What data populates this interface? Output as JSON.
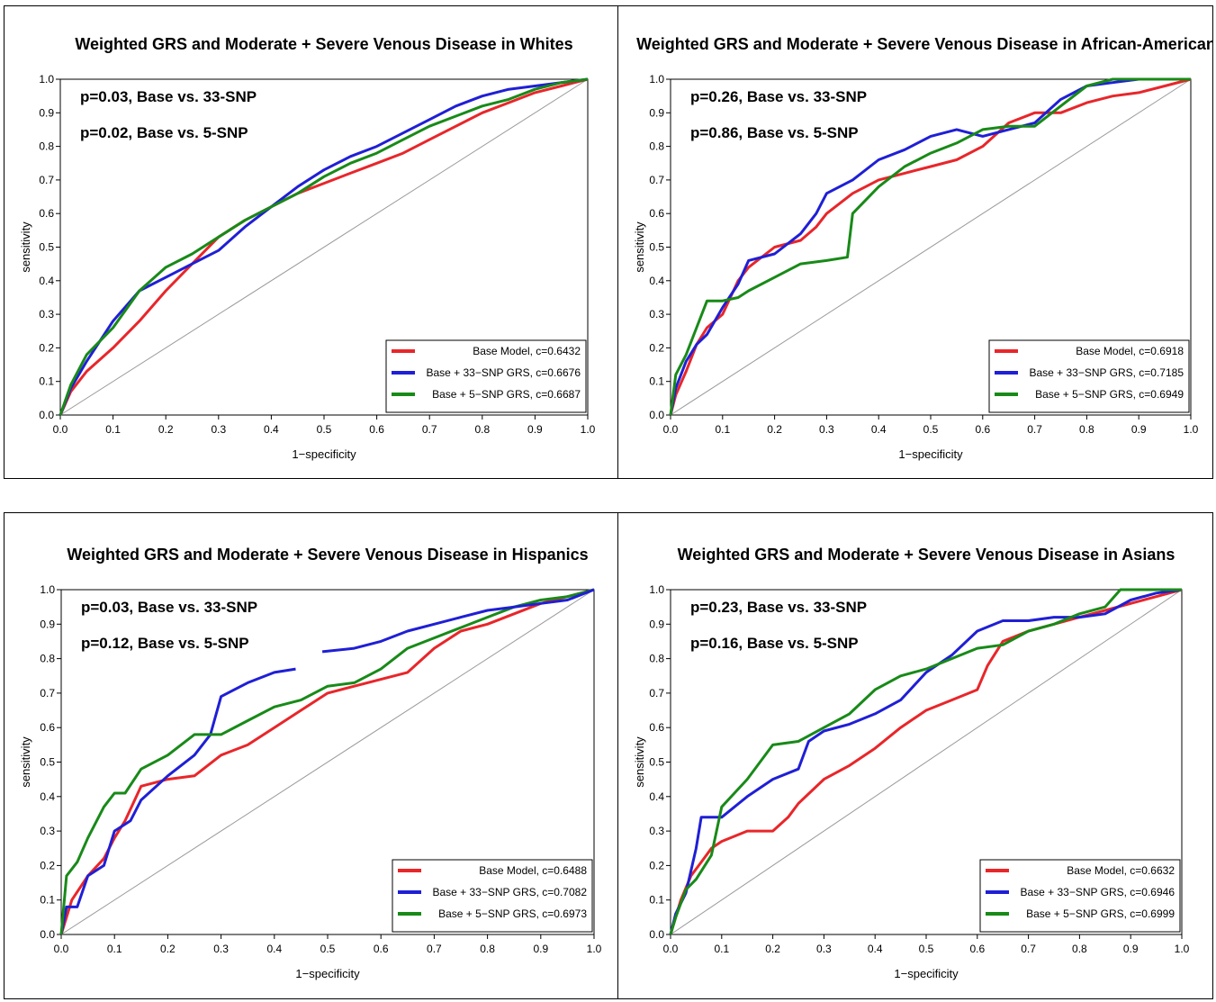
{
  "colors": {
    "base": "#e8262a",
    "snp33": "#1f1fd6",
    "snp5": "#188a18"
  },
  "chart_data": [
    {
      "type": "line",
      "title": "Weighted GRS and Moderate + Severe Venous Disease in Whites",
      "xlabel": "1−specificity",
      "ylabel": "sensitivity",
      "xlim": [
        0,
        1
      ],
      "ylim": [
        0,
        1
      ],
      "ticks": [
        "0.0",
        "0.1",
        "0.2",
        "0.3",
        "0.4",
        "0.5",
        "0.6",
        "0.7",
        "0.8",
        "0.9",
        "1.0"
      ],
      "annotations": [
        "p=0.03, Base vs. 33-SNP",
        "p=0.02, Base vs. 5-SNP"
      ],
      "legend_position": "bottom-right",
      "series": [
        {
          "name": "Base Model, c=0.6432",
          "color_key": "base",
          "x": [
            0,
            0.02,
            0.05,
            0.1,
            0.15,
            0.2,
            0.25,
            0.3,
            0.35,
            0.4,
            0.45,
            0.5,
            0.55,
            0.6,
            0.65,
            0.7,
            0.75,
            0.8,
            0.85,
            0.9,
            0.95,
            1.0
          ],
          "y": [
            0,
            0.07,
            0.13,
            0.2,
            0.28,
            0.37,
            0.45,
            0.53,
            0.58,
            0.62,
            0.66,
            0.69,
            0.72,
            0.75,
            0.78,
            0.82,
            0.86,
            0.9,
            0.93,
            0.96,
            0.98,
            1.0
          ]
        },
        {
          "name": "Base + 33−SNP GRS, c=0.6676",
          "color_key": "snp33",
          "x": [
            0,
            0.02,
            0.05,
            0.1,
            0.15,
            0.2,
            0.25,
            0.3,
            0.35,
            0.4,
            0.45,
            0.5,
            0.55,
            0.6,
            0.65,
            0.7,
            0.75,
            0.8,
            0.85,
            0.9,
            0.95,
            1.0
          ],
          "y": [
            0,
            0.08,
            0.16,
            0.28,
            0.37,
            0.41,
            0.45,
            0.49,
            0.56,
            0.62,
            0.68,
            0.73,
            0.77,
            0.8,
            0.84,
            0.88,
            0.92,
            0.95,
            0.97,
            0.98,
            0.99,
            1.0
          ]
        },
        {
          "name": "Base + 5−SNP GRS, c=0.6687",
          "color_key": "snp5",
          "x": [
            0,
            0.02,
            0.05,
            0.1,
            0.15,
            0.2,
            0.25,
            0.3,
            0.35,
            0.4,
            0.45,
            0.5,
            0.55,
            0.6,
            0.65,
            0.7,
            0.75,
            0.8,
            0.85,
            0.9,
            0.95,
            1.0
          ],
          "y": [
            0,
            0.09,
            0.18,
            0.26,
            0.37,
            0.44,
            0.48,
            0.53,
            0.58,
            0.62,
            0.66,
            0.71,
            0.75,
            0.78,
            0.82,
            0.86,
            0.89,
            0.92,
            0.94,
            0.97,
            0.99,
            1.0
          ]
        }
      ]
    },
    {
      "type": "line",
      "title": "Weighted GRS and Moderate + Severe Venous Disease in African-Americans",
      "xlabel": "1−specificity",
      "ylabel": "sensitivity",
      "xlim": [
        0,
        1
      ],
      "ylim": [
        0,
        1
      ],
      "ticks": [
        "0.0",
        "0.1",
        "0.2",
        "0.3",
        "0.4",
        "0.5",
        "0.6",
        "0.7",
        "0.8",
        "0.9",
        "1.0"
      ],
      "annotations": [
        "p=0.26, Base vs. 33-SNP",
        "p=0.86, Base vs. 5-SNP"
      ],
      "legend_position": "bottom-right",
      "series": [
        {
          "name": "Base Model, c=0.6918",
          "color_key": "base",
          "x": [
            0,
            0.01,
            0.03,
            0.05,
            0.07,
            0.1,
            0.13,
            0.15,
            0.2,
            0.25,
            0.28,
            0.3,
            0.35,
            0.4,
            0.45,
            0.5,
            0.55,
            0.6,
            0.65,
            0.7,
            0.75,
            0.8,
            0.85,
            0.9,
            0.95,
            1.0
          ],
          "y": [
            0,
            0.06,
            0.13,
            0.21,
            0.26,
            0.3,
            0.4,
            0.44,
            0.5,
            0.52,
            0.56,
            0.6,
            0.66,
            0.7,
            0.72,
            0.74,
            0.76,
            0.8,
            0.87,
            0.9,
            0.9,
            0.93,
            0.95,
            0.96,
            0.98,
            1.0
          ]
        },
        {
          "name": "Base + 33−SNP GRS, c=0.7185",
          "color_key": "snp33",
          "x": [
            0,
            0.01,
            0.03,
            0.05,
            0.07,
            0.1,
            0.13,
            0.15,
            0.2,
            0.25,
            0.28,
            0.3,
            0.35,
            0.4,
            0.45,
            0.5,
            0.55,
            0.6,
            0.65,
            0.7,
            0.75,
            0.8,
            0.85,
            0.9,
            0.95,
            1.0
          ],
          "y": [
            0,
            0.08,
            0.16,
            0.21,
            0.24,
            0.32,
            0.39,
            0.46,
            0.48,
            0.54,
            0.6,
            0.66,
            0.7,
            0.76,
            0.79,
            0.83,
            0.85,
            0.83,
            0.85,
            0.87,
            0.94,
            0.98,
            0.99,
            1.0,
            1.0,
            1.0
          ]
        },
        {
          "name": "Base + 5−SNP GRS, c=0.6949",
          "color_key": "snp5",
          "x": [
            0,
            0.01,
            0.03,
            0.05,
            0.07,
            0.1,
            0.13,
            0.15,
            0.2,
            0.25,
            0.3,
            0.34,
            0.35,
            0.4,
            0.45,
            0.5,
            0.55,
            0.6,
            0.65,
            0.7,
            0.75,
            0.8,
            0.85,
            0.9,
            0.95,
            1.0
          ],
          "y": [
            0,
            0.12,
            0.18,
            0.26,
            0.34,
            0.34,
            0.35,
            0.37,
            0.41,
            0.45,
            0.46,
            0.47,
            0.6,
            0.68,
            0.74,
            0.78,
            0.81,
            0.85,
            0.86,
            0.86,
            0.92,
            0.98,
            1.0,
            1.0,
            1.0,
            1.0
          ]
        }
      ]
    },
    {
      "type": "line",
      "title": "Weighted GRS and Moderate + Severe Venous Disease in Hispanics",
      "xlabel": "1−specificity",
      "ylabel": "sensitivity",
      "xlim": [
        0,
        1
      ],
      "ylim": [
        0,
        1
      ],
      "ticks": [
        "0.0",
        "0.1",
        "0.2",
        "0.3",
        "0.4",
        "0.5",
        "0.6",
        "0.7",
        "0.8",
        "0.9",
        "1.0"
      ],
      "annotations": [
        "p=0.03, Base vs. 33-SNP",
        "p=0.12, Base vs. 5-SNP"
      ],
      "legend_position": "bottom-right",
      "series": [
        {
          "name": "Base Model, c=0.6488",
          "color_key": "base",
          "x": [
            0,
            0.02,
            0.05,
            0.08,
            0.1,
            0.12,
            0.15,
            0.2,
            0.25,
            0.3,
            0.35,
            0.4,
            0.45,
            0.5,
            0.55,
            0.6,
            0.65,
            0.7,
            0.75,
            0.8,
            0.85,
            0.9,
            0.95,
            1.0
          ],
          "y": [
            0,
            0.1,
            0.17,
            0.22,
            0.28,
            0.33,
            0.43,
            0.45,
            0.46,
            0.52,
            0.55,
            0.6,
            0.65,
            0.7,
            0.72,
            0.74,
            0.76,
            0.83,
            0.88,
            0.9,
            0.93,
            0.96,
            0.98,
            1.0
          ]
        },
        {
          "name": "Base + 33−SNP GRS, c=0.7082",
          "color_key": "snp33",
          "x": [
            0,
            0.01,
            0.03,
            0.05,
            0.08,
            0.1,
            0.13,
            0.15,
            0.2,
            0.25,
            0.28,
            0.3,
            0.35,
            0.4,
            0.44
          ],
          "y": [
            0,
            0.08,
            0.08,
            0.17,
            0.2,
            0.3,
            0.33,
            0.39,
            0.46,
            0.52,
            0.58,
            0.69,
            0.73,
            0.76,
            0.77
          ]
        },
        {
          "name": "Base + 5−SNP GRS, c=0.6973",
          "color_key": "snp5",
          "x": [
            0,
            0.01,
            0.03,
            0.05,
            0.08,
            0.1,
            0.12,
            0.15,
            0.2,
            0.25,
            0.3,
            0.35,
            0.4,
            0.45,
            0.5,
            0.55,
            0.6,
            0.65,
            0.7,
            0.75,
            0.8,
            0.85,
            0.9,
            0.95,
            1.0
          ],
          "y": [
            0,
            0.17,
            0.21,
            0.28,
            0.37,
            0.41,
            0.41,
            0.48,
            0.52,
            0.58,
            0.58,
            0.62,
            0.66,
            0.68,
            0.72,
            0.73,
            0.77,
            0.83,
            0.86,
            0.89,
            0.92,
            0.95,
            0.97,
            0.98,
            1.0
          ]
        },
        {
          "name": "",
          "color_key": "snp33",
          "x": [
            0.49,
            0.55,
            0.6,
            0.65,
            0.7,
            0.75,
            0.8,
            0.85,
            0.9,
            0.95,
            1.0
          ],
          "y": [
            0.82,
            0.83,
            0.85,
            0.88,
            0.9,
            0.92,
            0.94,
            0.95,
            0.96,
            0.97,
            1.0
          ]
        }
      ]
    },
    {
      "type": "line",
      "title": "Weighted GRS and Moderate + Severe Venous Disease in Asians",
      "xlabel": "1−specificity",
      "ylabel": "sensitivity",
      "xlim": [
        0,
        1
      ],
      "ylim": [
        0,
        1
      ],
      "ticks": [
        "0.0",
        "0.1",
        "0.2",
        "0.3",
        "0.4",
        "0.5",
        "0.6",
        "0.7",
        "0.8",
        "0.9",
        "1.0"
      ],
      "annotations": [
        "p=0.23, Base vs. 33-SNP",
        "p=0.16, Base vs. 5-SNP"
      ],
      "legend_position": "bottom-right",
      "series": [
        {
          "name": "Base Model, c=0.6632",
          "color_key": "base",
          "x": [
            0,
            0.02,
            0.04,
            0.06,
            0.08,
            0.1,
            0.15,
            0.2,
            0.23,
            0.25,
            0.3,
            0.35,
            0.4,
            0.45,
            0.5,
            0.55,
            0.6,
            0.62,
            0.65,
            0.7,
            0.75,
            0.8,
            0.85,
            0.9,
            0.95,
            1.0
          ],
          "y": [
            0,
            0.1,
            0.17,
            0.21,
            0.25,
            0.27,
            0.3,
            0.3,
            0.34,
            0.38,
            0.45,
            0.49,
            0.54,
            0.6,
            0.65,
            0.68,
            0.71,
            0.78,
            0.85,
            0.88,
            0.9,
            0.92,
            0.94,
            0.96,
            0.98,
            1.0
          ]
        },
        {
          "name": "Base + 33−SNP GRS, c=0.6946",
          "color_key": "snp33",
          "x": [
            0,
            0.01,
            0.03,
            0.05,
            0.06,
            0.1,
            0.15,
            0.2,
            0.25,
            0.27,
            0.3,
            0.35,
            0.4,
            0.45,
            0.5,
            0.55,
            0.6,
            0.65,
            0.7,
            0.75,
            0.8,
            0.85,
            0.9,
            0.95,
            1.0
          ],
          "y": [
            0,
            0.06,
            0.12,
            0.25,
            0.34,
            0.34,
            0.4,
            0.45,
            0.48,
            0.56,
            0.59,
            0.61,
            0.64,
            0.68,
            0.76,
            0.81,
            0.88,
            0.91,
            0.91,
            0.92,
            0.92,
            0.93,
            0.97,
            0.99,
            1.0
          ]
        },
        {
          "name": "Base + 5−SNP GRS, c=0.6999",
          "color_key": "snp5",
          "x": [
            0,
            0.01,
            0.03,
            0.05,
            0.08,
            0.1,
            0.15,
            0.2,
            0.25,
            0.3,
            0.35,
            0.4,
            0.45,
            0.5,
            0.55,
            0.6,
            0.65,
            0.7,
            0.75,
            0.8,
            0.85,
            0.88,
            0.9,
            0.95,
            1.0
          ],
          "y": [
            0,
            0.05,
            0.13,
            0.16,
            0.23,
            0.37,
            0.45,
            0.55,
            0.56,
            0.6,
            0.64,
            0.71,
            0.75,
            0.77,
            0.8,
            0.83,
            0.84,
            0.88,
            0.9,
            0.93,
            0.95,
            1.0,
            1.0,
            1.0,
            1.0
          ]
        }
      ]
    }
  ]
}
